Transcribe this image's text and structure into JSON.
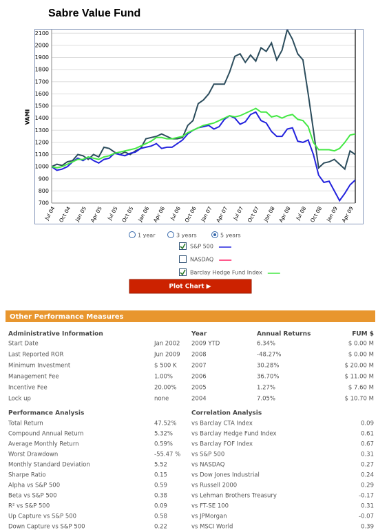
{
  "title": "Sabre Value Fund",
  "chart_data": {
    "type": "line",
    "ylabel": "VAMI",
    "categories": [
      "Jul 04",
      null,
      null,
      "Oct 04",
      null,
      null,
      "Jan 05",
      null,
      null,
      "Apr 05",
      null,
      null,
      "Jul 05",
      null,
      null,
      "Oct 05",
      null,
      null,
      "Jan 06",
      null,
      null,
      "Apr 06",
      null,
      null,
      "Jul 06",
      null,
      null,
      "Oct 06",
      null,
      null,
      "Jan 07",
      null,
      null,
      "Apr 07",
      null,
      null,
      "Jul 07",
      null,
      null,
      "Oct 07",
      null,
      null,
      "Jan 08",
      null,
      null,
      "Apr 08",
      null,
      null,
      "Jul 08",
      null,
      null,
      "Oct 08",
      null,
      null,
      "Jan 09",
      null,
      null,
      "Apr 09",
      null
    ],
    "ylim": [
      700,
      2130
    ],
    "yticks": [
      700,
      800,
      900,
      1000,
      1100,
      1200,
      1300,
      1400,
      1500,
      1600,
      1700,
      1800,
      1900,
      2000,
      2100
    ],
    "grid": true,
    "series": [
      {
        "color": "#2b4c5c",
        "values": [
          1000,
          1020,
          1010,
          1040,
          1050,
          1100,
          1090,
          1060,
          1100,
          1080,
          1160,
          1150,
          1120,
          1100,
          1120,
          1100,
          1130,
          1150,
          1230,
          1240,
          1250,
          1270,
          1250,
          1230,
          1230,
          1240,
          1340,
          1380,
          1520,
          1550,
          1600,
          1680,
          1680,
          1680,
          1780,
          1910,
          1930,
          1860,
          1920,
          1870,
          1980,
          1950,
          2020,
          1880,
          1960,
          2130,
          2050,
          1930,
          1880,
          1600,
          1300,
          990,
          1030,
          1040,
          1060,
          1020,
          980,
          1130,
          1100
        ]
      },
      {
        "color": "#2222dd",
        "values": [
          1000,
          970,
          980,
          1000,
          1040,
          1070,
          1050,
          1080,
          1050,
          1030,
          1060,
          1070,
          1110,
          1100,
          1090,
          1110,
          1120,
          1150,
          1160,
          1170,
          1190,
          1150,
          1160,
          1160,
          1190,
          1220,
          1270,
          1300,
          1320,
          1330,
          1340,
          1310,
          1330,
          1390,
          1420,
          1400,
          1350,
          1370,
          1430,
          1450,
          1380,
          1360,
          1290,
          1250,
          1250,
          1310,
          1320,
          1210,
          1200,
          1220,
          1100,
          930,
          870,
          880,
          800,
          720,
          780,
          850,
          890
        ]
      },
      {
        "color": "#44e844",
        "values": [
          1000,
          990,
          1000,
          1020,
          1040,
          1060,
          1060,
          1080,
          1070,
          1060,
          1080,
          1090,
          1110,
          1120,
          1130,
          1140,
          1150,
          1170,
          1190,
          1210,
          1240,
          1240,
          1230,
          1230,
          1240,
          1250,
          1280,
          1300,
          1320,
          1340,
          1350,
          1360,
          1380,
          1400,
          1420,
          1410,
          1420,
          1440,
          1460,
          1480,
          1450,
          1450,
          1410,
          1420,
          1400,
          1420,
          1430,
          1390,
          1380,
          1330,
          1200,
          1140,
          1140,
          1140,
          1130,
          1150,
          1200,
          1260,
          1270
        ]
      }
    ]
  },
  "controls": {
    "periods": [
      {
        "label": "1 year",
        "selected": false
      },
      {
        "label": "3 years",
        "selected": false
      },
      {
        "label": "5 years",
        "selected": true
      }
    ],
    "legend": [
      {
        "label": "S&P 500",
        "color": "#2222dd",
        "checked": true
      },
      {
        "label": "NASDAQ",
        "color": "#ff2266",
        "checked": false
      },
      {
        "label": "Barclay Hedge Fund Index",
        "color": "#44e844",
        "checked": true
      }
    ],
    "button": "Plot Chart ▶"
  },
  "measures": {
    "title": "Other Performance Measures",
    "admin": {
      "header": "Administrative Information",
      "rows": [
        [
          "Start Date",
          "Jan 2002"
        ],
        [
          "Last Reported ROR",
          "Jun 2009"
        ],
        [
          "Minimum Investment",
          "$ 500 K"
        ],
        [
          "Management Fee",
          "1.00%"
        ],
        [
          "Incentive Fee",
          "20.00%"
        ],
        [
          "Lock up",
          "none"
        ]
      ]
    },
    "annual": {
      "headers": [
        "Year",
        "Annual Returns",
        "FUM $"
      ],
      "rows": [
        [
          "2009 YTD",
          "6.34%",
          "$ 0.00 M"
        ],
        [
          "2008",
          "-48.27%",
          "$ 0.00 M"
        ],
        [
          "2007",
          "30.28%",
          "$ 20.00 M"
        ],
        [
          "2006",
          "36.70%",
          "$ 11.00 M"
        ],
        [
          "2005",
          "1.27%",
          "$ 7.60 M"
        ],
        [
          "2004",
          "7.05%",
          "$ 10.70 M"
        ]
      ]
    },
    "performance": {
      "header": "Performance Analysis",
      "rows": [
        [
          "Total Return",
          "47.52%"
        ],
        [
          "Compound Annual Return",
          "5.32%"
        ],
        [
          "Average Monthly Return",
          "0.59%"
        ],
        [
          "Worst Drawdown",
          "-55.47 %"
        ],
        [
          "Monthly Standard Deviation",
          "5.52"
        ],
        [
          "Sharpe Ratio",
          "0.15"
        ],
        [
          "Alpha vs S&P 500",
          "0.59"
        ],
        [
          "Beta vs S&P 500",
          "0.38"
        ],
        [
          "R² vs S&P 500",
          "0.09"
        ],
        [
          "Up Capture vs S&P 500",
          "0.58"
        ],
        [
          "Down Capture vs S&P 500",
          "0.22"
        ]
      ]
    },
    "correlation": {
      "header": "Correlation Analysis",
      "rows": [
        [
          "vs Barclay CTA Index",
          "0.09"
        ],
        [
          "vs Barclay Hedge Fund Index",
          "0.61"
        ],
        [
          "vs Barclay FOF Index",
          "0.67"
        ],
        [
          "vs S&P 500",
          "0.31"
        ],
        [
          "vs NASDAQ",
          "0.27"
        ],
        [
          "vs Dow Jones Industrial",
          "0.24"
        ],
        [
          "vs Russell 2000",
          "0.29"
        ],
        [
          "vs Lehman Brothers Treasury",
          "-0.17"
        ],
        [
          "vs FT-SE 100",
          "0.31"
        ],
        [
          "vs JPMorgan",
          "-0.07"
        ],
        [
          "vs MSCI World",
          "0.39"
        ]
      ]
    }
  }
}
